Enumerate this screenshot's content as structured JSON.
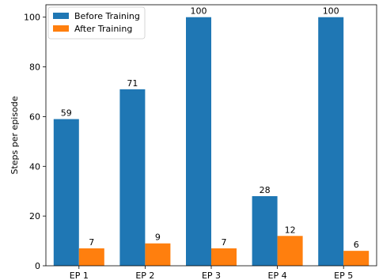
{
  "chart_data": {
    "type": "bar",
    "title": "",
    "xlabel": "",
    "ylabel": "Steps per episode",
    "categories": [
      "EP 1",
      "EP 2",
      "EP 3",
      "EP 4",
      "EP 5"
    ],
    "series": [
      {
        "name": "Before Training",
        "values": [
          59,
          71,
          100,
          28,
          100
        ],
        "color": "#1f77b4"
      },
      {
        "name": "After Training",
        "values": [
          7,
          9,
          7,
          12,
          6
        ],
        "color": "#ff7f0e"
      }
    ],
    "ylim": [
      0,
      105
    ],
    "yticks": [
      0,
      20,
      40,
      60,
      80,
      100
    ],
    "grid": false,
    "legend": "top-left",
    "data_labels": true
  }
}
